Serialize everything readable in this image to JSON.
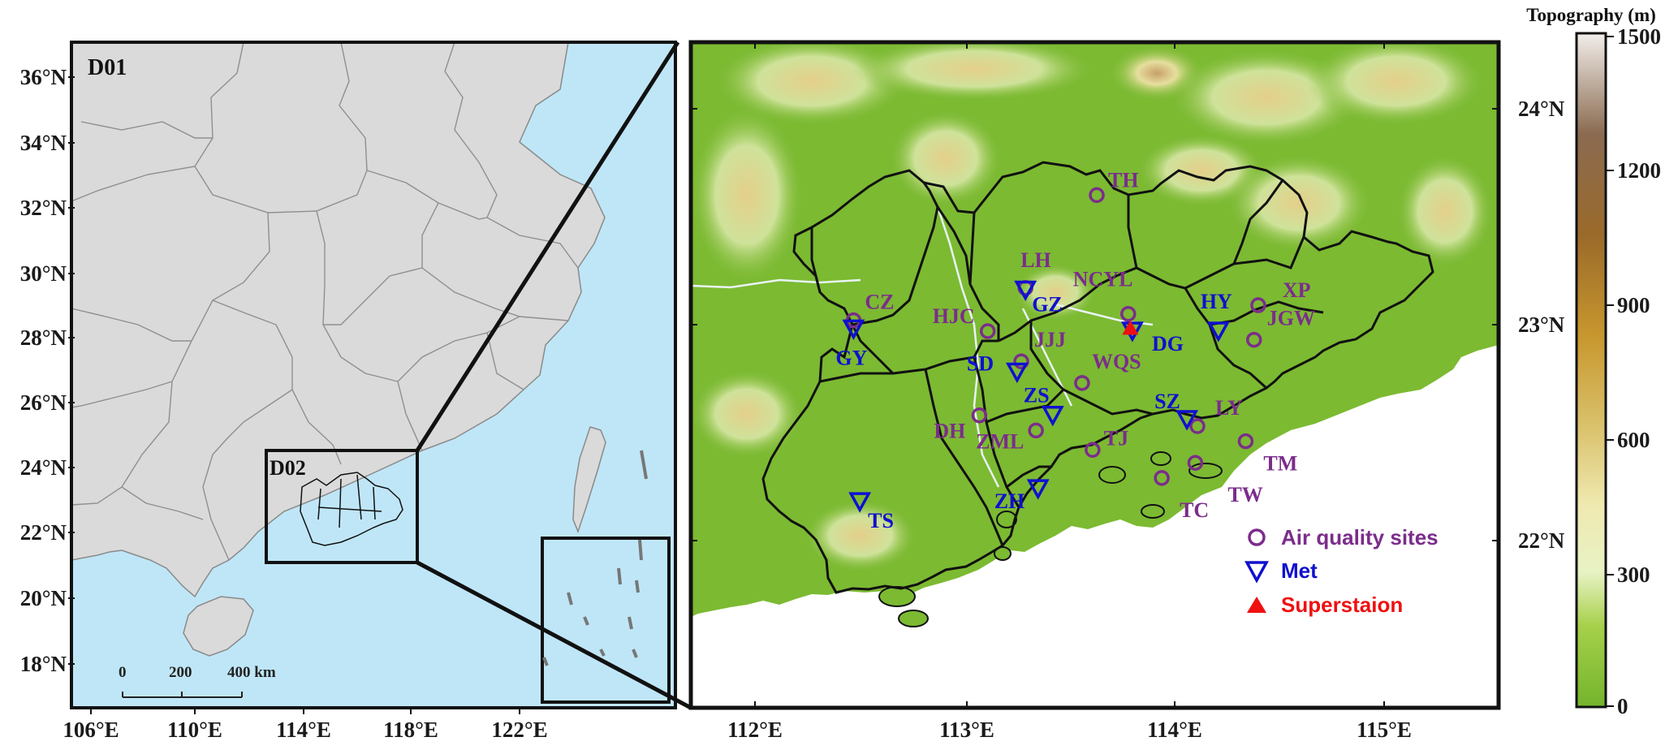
{
  "colorbar": {
    "title": "Topography (m)",
    "ticks": [
      "1500",
      "1200",
      "900",
      "600",
      "300",
      "0"
    ],
    "range_m": [
      0,
      1500
    ]
  },
  "panel_left": {
    "domain_label": "D01",
    "inset_label": "D02",
    "lat_labels": [
      "36°N",
      "34°N",
      "32°N",
      "30°N",
      "28°N",
      "26°N",
      "24°N",
      "22°N",
      "20°N",
      "18°N"
    ],
    "lon_labels": [
      "106°E",
      "110°E",
      "114°E",
      "118°E",
      "122°E"
    ],
    "scale_bar": {
      "labels": [
        "0",
        "200",
        "400 km"
      ]
    },
    "colors": {
      "land": "#dadada",
      "sea": "#bfe6f7",
      "border": "#8a8a8a"
    }
  },
  "panel_right": {
    "lat_labels": [
      "24°N",
      "23°N",
      "22°N"
    ],
    "lon_labels": [
      "112°E",
      "113°E",
      "114°E",
      "115°E"
    ],
    "colors": {
      "terrain_low": "#7cba32",
      "terrain_mid": "#d6df8c",
      "terrain_high": "#b58952",
      "sea": "#ffffff"
    },
    "air_quality_sites": [
      {
        "name": "TH",
        "lon": 113.63,
        "lat": 23.6
      },
      {
        "name": "CZ",
        "lon": 112.47,
        "lat": 23.02
      },
      {
        "name": "LH",
        "lon": 113.29,
        "lat": 23.17
      },
      {
        "name": "NCYL",
        "lon": 113.78,
        "lat": 23.05
      },
      {
        "name": "XP",
        "lon": 114.4,
        "lat": 23.09
      },
      {
        "name": "HJC",
        "lon": 113.11,
        "lat": 22.97
      },
      {
        "name": "JGW",
        "lon": 114.38,
        "lat": 22.93
      },
      {
        "name": "JJJ",
        "lon": 113.27,
        "lat": 22.83
      },
      {
        "name": "WQS",
        "lon": 113.56,
        "lat": 22.73
      },
      {
        "name": "DH",
        "lon": 113.07,
        "lat": 22.58
      },
      {
        "name": "ZML",
        "lon": 113.34,
        "lat": 22.51
      },
      {
        "name": "TJ",
        "lon": 113.61,
        "lat": 22.42
      },
      {
        "name": "LY",
        "lon": 114.11,
        "lat": 22.53
      },
      {
        "name": "TM",
        "lon": 114.34,
        "lat": 22.46
      },
      {
        "name": "TC",
        "lon": 113.94,
        "lat": 22.29
      },
      {
        "name": "TW",
        "lon": 114.1,
        "lat": 22.36
      }
    ],
    "met_sites": [
      {
        "name": "GY",
        "lon": 112.47,
        "lat": 22.98
      },
      {
        "name": "GZ",
        "lon": 113.29,
        "lat": 23.16
      },
      {
        "name": "HY",
        "lon": 114.21,
        "lat": 22.97
      },
      {
        "name": "DG",
        "lon": 113.8,
        "lat": 22.97
      },
      {
        "name": "SD",
        "lon": 113.25,
        "lat": 22.78
      },
      {
        "name": "ZS",
        "lon": 113.42,
        "lat": 22.58
      },
      {
        "name": "SZ",
        "lon": 114.06,
        "lat": 22.56
      },
      {
        "name": "TS",
        "lon": 112.5,
        "lat": 22.18
      },
      {
        "name": "ZH",
        "lon": 113.35,
        "lat": 22.24
      }
    ],
    "superstation": {
      "lon": 113.79,
      "lat": 22.98
    },
    "legend": [
      {
        "symbol": "circle",
        "label": "Air quality sites",
        "color": "#7b2d8b"
      },
      {
        "symbol": "triangle-down",
        "label": "Met",
        "color": "#1010d0"
      },
      {
        "symbol": "triangle-up",
        "label": "Superstaion",
        "color": "#ee1111"
      }
    ]
  }
}
